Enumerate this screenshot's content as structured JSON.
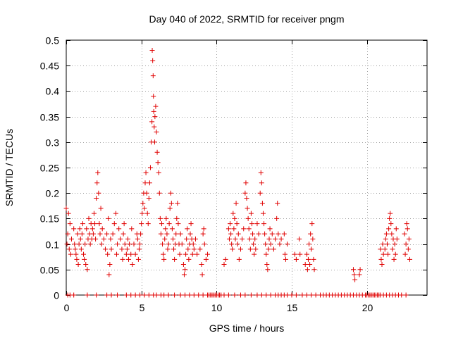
{
  "chart_data": {
    "type": "scatter",
    "title": "Day 040 of 2022, SRMTID for receiver pngm",
    "xlabel": "GPS time / hours",
    "ylabel": "SRMTID / TECUs",
    "xlim": [
      0,
      24
    ],
    "ylim": [
      0,
      0.5
    ],
    "xticks": [
      0,
      5,
      10,
      15,
      20
    ],
    "yticks": [
      0,
      0.05,
      0.1,
      0.15,
      0.2,
      0.25,
      0.3,
      0.35,
      0.4,
      0.45,
      0.5
    ],
    "ytick_labels": [
      "0",
      "0.05",
      "0.1",
      "0.15",
      "0.2",
      "0.25",
      "0.3",
      "0.35",
      "0.4",
      "0.45",
      "0.5"
    ],
    "grid": true,
    "marker": "+",
    "color": "#e00000",
    "series": [
      {
        "name": "SRMTID",
        "points": [
          [
            0.0,
            0.17
          ],
          [
            0.05,
            0.1
          ],
          [
            0.1,
            0.12
          ],
          [
            0.15,
            0.16
          ],
          [
            0.2,
            0.09
          ],
          [
            0.25,
            0.14
          ],
          [
            0.3,
            0.08
          ],
          [
            0.35,
            0.11
          ],
          [
            0.5,
            0.13
          ],
          [
            0.55,
            0.1
          ],
          [
            0.6,
            0.09
          ],
          [
            0.65,
            0.08
          ],
          [
            0.7,
            0.07
          ],
          [
            0.75,
            0.12
          ],
          [
            0.8,
            0.06
          ],
          [
            0.85,
            0.1
          ],
          [
            0.9,
            0.13
          ],
          [
            0.95,
            0.11
          ],
          [
            1.0,
            0.09
          ],
          [
            1.05,
            0.12
          ],
          [
            1.1,
            0.14
          ],
          [
            1.15,
            0.08
          ],
          [
            1.2,
            0.07
          ],
          [
            1.25,
            0.1
          ],
          [
            1.3,
            0.06
          ],
          [
            1.35,
            0.13
          ],
          [
            1.4,
            0.05
          ],
          [
            1.45,
            0.11
          ],
          [
            1.5,
            0.15
          ],
          [
            1.55,
            0.12
          ],
          [
            1.6,
            0.1
          ],
          [
            1.65,
            0.14
          ],
          [
            1.7,
            0.11
          ],
          [
            1.75,
            0.13
          ],
          [
            1.8,
            0.12
          ],
          [
            1.85,
            0.16
          ],
          [
            1.9,
            0.14
          ],
          [
            1.95,
            0.11
          ],
          [
            2.0,
            0.19
          ],
          [
            2.05,
            0.22
          ],
          [
            2.1,
            0.24
          ],
          [
            2.15,
            0.2
          ],
          [
            2.2,
            0.14
          ],
          [
            2.25,
            0.12
          ],
          [
            2.3,
            0.17
          ],
          [
            2.35,
            0.1
          ],
          [
            2.4,
            0.13
          ],
          [
            2.5,
            0.11
          ],
          [
            2.6,
            0.09
          ],
          [
            2.7,
            0.12
          ],
          [
            2.75,
            0.08
          ],
          [
            2.8,
            0.15
          ],
          [
            2.85,
            0.04
          ],
          [
            2.9,
            0.06
          ],
          [
            2.95,
            0.11
          ],
          [
            3.0,
            0.09
          ],
          [
            3.1,
            0.12
          ],
          [
            3.2,
            0.14
          ],
          [
            3.3,
            0.16
          ],
          [
            3.35,
            0.08
          ],
          [
            3.4,
            0.1
          ],
          [
            3.5,
            0.13
          ],
          [
            3.6,
            0.11
          ],
          [
            3.7,
            0.09
          ],
          [
            3.75,
            0.07
          ],
          [
            3.8,
            0.12
          ],
          [
            3.85,
            0.14
          ],
          [
            3.9,
            0.1
          ],
          [
            4.0,
            0.08
          ],
          [
            4.05,
            0.09
          ],
          [
            4.1,
            0.11
          ],
          [
            4.15,
            0.07
          ],
          [
            4.2,
            0.1
          ],
          [
            4.3,
            0.08
          ],
          [
            4.35,
            0.13
          ],
          [
            4.4,
            0.06
          ],
          [
            4.5,
            0.1
          ],
          [
            4.6,
            0.08
          ],
          [
            4.7,
            0.12
          ],
          [
            4.75,
            0.11
          ],
          [
            4.8,
            0.07
          ],
          [
            4.85,
            0.09
          ],
          [
            4.9,
            0.1
          ],
          [
            4.95,
            0.12
          ],
          [
            5.0,
            0.14
          ],
          [
            5.05,
            0.16
          ],
          [
            5.1,
            0.18
          ],
          [
            5.15,
            0.2
          ],
          [
            5.2,
            0.17
          ],
          [
            5.25,
            0.22
          ],
          [
            5.3,
            0.24
          ],
          [
            5.35,
            0.2
          ],
          [
            5.4,
            0.16
          ],
          [
            5.45,
            0.14
          ],
          [
            5.5,
            0.19
          ],
          [
            5.55,
            0.22
          ],
          [
            5.6,
            0.25
          ],
          [
            5.65,
            0.3
          ],
          [
            5.7,
            0.34
          ],
          [
            5.72,
            0.48
          ],
          [
            5.75,
            0.46
          ],
          [
            5.78,
            0.43
          ],
          [
            5.8,
            0.39
          ],
          [
            5.82,
            0.36
          ],
          [
            5.85,
            0.33
          ],
          [
            5.88,
            0.3
          ],
          [
            5.9,
            0.35
          ],
          [
            5.95,
            0.37
          ],
          [
            6.0,
            0.32
          ],
          [
            6.05,
            0.28
          ],
          [
            6.1,
            0.26
          ],
          [
            6.15,
            0.24
          ],
          [
            6.2,
            0.2
          ],
          [
            6.25,
            0.15
          ],
          [
            6.3,
            0.12
          ],
          [
            6.35,
            0.14
          ],
          [
            6.4,
            0.1
          ],
          [
            6.45,
            0.08
          ],
          [
            6.5,
            0.07
          ],
          [
            6.55,
            0.11
          ],
          [
            6.6,
            0.13
          ],
          [
            6.65,
            0.15
          ],
          [
            6.7,
            0.12
          ],
          [
            6.75,
            0.09
          ],
          [
            6.8,
            0.1
          ],
          [
            6.85,
            0.14
          ],
          [
            6.9,
            0.17
          ],
          [
            6.95,
            0.2
          ],
          [
            7.0,
            0.18
          ],
          [
            7.05,
            0.13
          ],
          [
            7.1,
            0.11
          ],
          [
            7.15,
            0.09
          ],
          [
            7.2,
            0.07
          ],
          [
            7.25,
            0.1
          ],
          [
            7.3,
            0.12
          ],
          [
            7.35,
            0.15
          ],
          [
            7.4,
            0.18
          ],
          [
            7.45,
            0.14
          ],
          [
            7.5,
            0.1
          ],
          [
            7.55,
            0.08
          ],
          [
            7.6,
            0.12
          ],
          [
            7.7,
            0.1
          ],
          [
            7.8,
            0.06
          ],
          [
            7.85,
            0.04
          ],
          [
            7.9,
            0.05
          ],
          [
            7.95,
            0.08
          ],
          [
            8.0,
            0.11
          ],
          [
            8.05,
            0.13
          ],
          [
            8.1,
            0.09
          ],
          [
            8.15,
            0.07
          ],
          [
            8.2,
            0.1
          ],
          [
            8.25,
            0.12
          ],
          [
            8.3,
            0.14
          ],
          [
            8.35,
            0.11
          ],
          [
            8.4,
            0.08
          ],
          [
            8.45,
            0.1
          ],
          [
            8.5,
            0.09
          ],
          [
            8.6,
            0.11
          ],
          [
            8.7,
            0.08
          ],
          [
            8.9,
            0.09
          ],
          [
            9.0,
            0.06
          ],
          [
            9.05,
            0.04
          ],
          [
            9.1,
            0.12
          ],
          [
            9.15,
            0.13
          ],
          [
            9.2,
            0.1
          ],
          [
            9.3,
            0.07
          ],
          [
            9.4,
            0.08
          ],
          [
            10.5,
            0.06
          ],
          [
            10.6,
            0.07
          ],
          [
            10.8,
            0.13
          ],
          [
            10.85,
            0.11
          ],
          [
            10.9,
            0.14
          ],
          [
            10.95,
            0.12
          ],
          [
            11.0,
            0.1
          ],
          [
            11.05,
            0.09
          ],
          [
            11.1,
            0.16
          ],
          [
            11.15,
            0.13
          ],
          [
            11.2,
            0.15
          ],
          [
            11.25,
            0.11
          ],
          [
            11.3,
            0.18
          ],
          [
            11.35,
            0.14
          ],
          [
            11.4,
            0.1
          ],
          [
            11.45,
            0.12
          ],
          [
            11.5,
            0.07
          ],
          [
            11.6,
            0.09
          ],
          [
            11.7,
            0.11
          ],
          [
            11.8,
            0.13
          ],
          [
            11.9,
            0.2
          ],
          [
            11.95,
            0.22
          ],
          [
            12.0,
            0.19
          ],
          [
            12.05,
            0.17
          ],
          [
            12.1,
            0.15
          ],
          [
            12.15,
            0.13
          ],
          [
            12.2,
            0.11
          ],
          [
            12.25,
            0.09
          ],
          [
            12.3,
            0.16
          ],
          [
            12.35,
            0.14
          ],
          [
            12.4,
            0.12
          ],
          [
            12.45,
            0.1
          ],
          [
            12.5,
            0.08
          ],
          [
            12.55,
            0.11
          ],
          [
            12.6,
            0.09
          ],
          [
            12.7,
            0.14
          ],
          [
            12.8,
            0.12
          ],
          [
            12.9,
            0.2
          ],
          [
            12.95,
            0.24
          ],
          [
            13.0,
            0.22
          ],
          [
            13.05,
            0.18
          ],
          [
            13.1,
            0.16
          ],
          [
            13.15,
            0.14
          ],
          [
            13.2,
            0.12
          ],
          [
            13.25,
            0.1
          ],
          [
            13.3,
            0.08
          ],
          [
            13.35,
            0.06
          ],
          [
            13.4,
            0.05
          ],
          [
            13.45,
            0.09
          ],
          [
            13.5,
            0.11
          ],
          [
            13.55,
            0.13
          ],
          [
            13.6,
            0.1
          ],
          [
            13.7,
            0.12
          ],
          [
            13.8,
            0.09
          ],
          [
            13.9,
            0.11
          ],
          [
            14.0,
            0.15
          ],
          [
            14.05,
            0.18
          ],
          [
            14.1,
            0.12
          ],
          [
            14.2,
            0.1
          ],
          [
            14.3,
            0.11
          ],
          [
            14.5,
            0.12
          ],
          [
            14.55,
            0.08
          ],
          [
            14.6,
            0.07
          ],
          [
            14.7,
            0.1
          ],
          [
            15.2,
            0.08
          ],
          [
            15.3,
            0.07
          ],
          [
            15.5,
            0.11
          ],
          [
            15.55,
            0.08
          ],
          [
            15.9,
            0.06
          ],
          [
            16.0,
            0.08
          ],
          [
            16.05,
            0.05
          ],
          [
            16.1,
            0.07
          ],
          [
            16.15,
            0.1
          ],
          [
            16.2,
            0.06
          ],
          [
            16.25,
            0.12
          ],
          [
            16.3,
            0.09
          ],
          [
            16.35,
            0.14
          ],
          [
            16.4,
            0.11
          ],
          [
            16.45,
            0.07
          ],
          [
            16.5,
            0.05
          ],
          [
            19.1,
            0.05
          ],
          [
            19.15,
            0.04
          ],
          [
            19.2,
            0.03
          ],
          [
            19.5,
            0.04
          ],
          [
            19.55,
            0.05
          ],
          [
            20.9,
            0.09
          ],
          [
            20.95,
            0.07
          ],
          [
            21.0,
            0.06
          ],
          [
            21.05,
            0.1
          ],
          [
            21.1,
            0.08
          ],
          [
            21.2,
            0.09
          ],
          [
            21.25,
            0.11
          ],
          [
            21.3,
            0.12
          ],
          [
            21.35,
            0.1
          ],
          [
            21.4,
            0.08
          ],
          [
            21.45,
            0.13
          ],
          [
            21.5,
            0.15
          ],
          [
            21.55,
            0.16
          ],
          [
            21.6,
            0.14
          ],
          [
            21.65,
            0.12
          ],
          [
            21.7,
            0.09
          ],
          [
            21.75,
            0.11
          ],
          [
            21.8,
            0.07
          ],
          [
            21.85,
            0.1
          ],
          [
            21.9,
            0.08
          ],
          [
            21.95,
            0.13
          ],
          [
            22.0,
            0.11
          ],
          [
            22.5,
            0.12
          ],
          [
            22.55,
            0.08
          ],
          [
            22.6,
            0.1
          ],
          [
            22.65,
            0.14
          ],
          [
            22.7,
            0.13
          ],
          [
            22.75,
            0.09
          ],
          [
            22.8,
            0.11
          ],
          [
            22.85,
            0.07
          ]
        ],
        "zero_points": [
          0.1,
          0.25,
          0.5,
          1.4,
          2.0,
          2.7,
          3.0,
          3.4,
          4.0,
          4.3,
          4.6,
          4.9,
          5.2,
          5.5,
          5.8,
          6.0,
          6.3,
          6.5,
          6.8,
          7.2,
          7.6,
          7.9,
          8.2,
          8.5,
          8.8,
          9.1,
          9.4,
          9.5,
          9.6,
          9.7,
          9.8,
          9.9,
          10.0,
          10.1,
          10.2,
          10.3,
          10.5,
          10.8,
          11.2,
          11.6,
          11.9,
          12.3,
          12.7,
          13.0,
          13.3,
          13.6,
          13.9,
          14.1,
          14.3,
          14.5,
          14.7,
          15.0,
          15.3,
          15.7,
          16.0,
          16.3,
          16.6,
          16.9,
          17.1,
          17.3,
          17.5,
          17.7,
          17.9,
          18.1,
          18.3,
          18.5,
          18.7,
          18.9,
          19.1,
          19.3,
          19.5,
          19.7,
          19.9,
          20.0,
          20.1,
          20.2,
          20.3,
          20.4,
          20.5,
          20.6,
          20.7,
          20.8,
          20.9,
          21.1,
          21.3,
          21.5,
          21.7,
          21.9,
          22.1,
          22.3,
          22.6
        ]
      }
    ]
  }
}
